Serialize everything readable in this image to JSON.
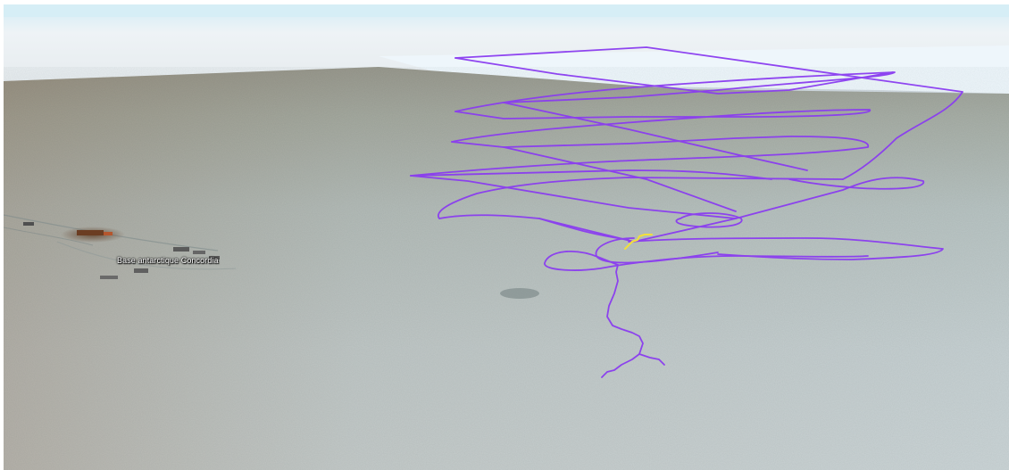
{
  "map": {
    "view": "3D terrain, oblique perspective",
    "place_label": "Base antarctique Concordia"
  },
  "colors": {
    "sky_top": "#d6eef6",
    "sky_bottom": "#eef3f5",
    "snow_near": "#c9d3d6",
    "snow_far": "#a9b3b1",
    "ice_shelf": "#eef6fb",
    "flight_track": "#8a3cf0",
    "highlight_segment": "#f2e03a"
  },
  "icons": [
    "station-buildings-icon"
  ]
}
